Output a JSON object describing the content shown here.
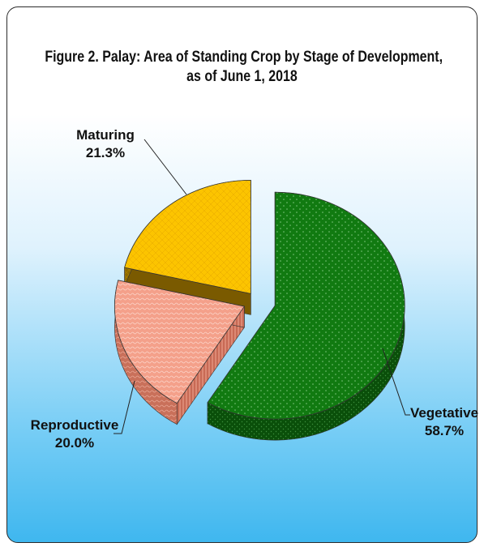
{
  "chart_data": {
    "type": "pie",
    "title": "Figure 2. Palay: Area of Standing Crop by Stage of Development,",
    "subtitle": "as of  June 1, 2018",
    "slices": [
      {
        "label": "Vegetative",
        "value": 58.7,
        "value_label": "58.7%",
        "color": "#117a11"
      },
      {
        "label": "Reproductive",
        "value": 20.0,
        "value_label": "20.0%",
        "color": "#f4a08a"
      },
      {
        "label": "Maturing",
        "value": 21.3,
        "value_label": "21.3%",
        "color": "#fcc400"
      }
    ],
    "style": "3d-exploded-pie"
  }
}
